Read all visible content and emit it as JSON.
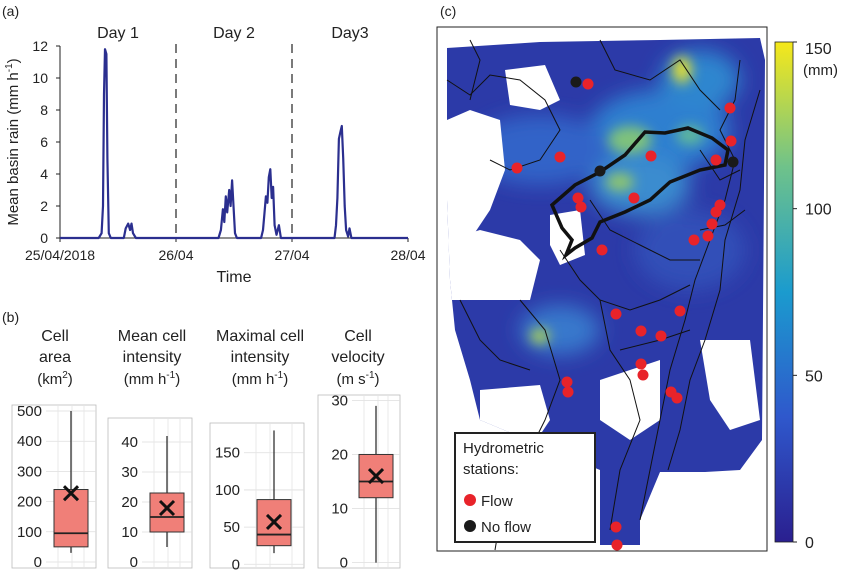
{
  "panels": {
    "a": "(a)",
    "b": "(b)",
    "c": "(c)"
  },
  "chart_data": [
    {
      "id": "a",
      "type": "line",
      "xlabel": "Time",
      "ylabel_main": "Mean basin rain (mm h",
      "ylabel_sup": "-1",
      "ylabel_tail": ")",
      "xlim": [
        0,
        72
      ],
      "ylim": [
        0,
        12
      ],
      "yticks": [
        0,
        2,
        4,
        6,
        8,
        10,
        12
      ],
      "xticks": [
        {
          "v": 0,
          "label": "25/04/2018"
        },
        {
          "v": 24,
          "label": "26/04"
        },
        {
          "v": 48,
          "label": "27/04"
        },
        {
          "v": 72,
          "label": "28/04"
        }
      ],
      "day_dividers": [
        24,
        48
      ],
      "day_labels": [
        {
          "v": 12,
          "label": "Day 1"
        },
        {
          "v": 36,
          "label": "Day 2"
        },
        {
          "v": 60,
          "label": "Day3"
        }
      ],
      "color": "#2b2f8f",
      "series": [
        {
          "values": [
            [
              0,
              0
            ],
            [
              8.0,
              0
            ],
            [
              8.6,
              0.3
            ],
            [
              8.9,
              2
            ],
            [
              9.1,
              9
            ],
            [
              9.3,
              11.8
            ],
            [
              9.6,
              11.5
            ],
            [
              9.8,
              5
            ],
            [
              10.1,
              0.3
            ],
            [
              10.5,
              0
            ],
            [
              13.2,
              0
            ],
            [
              13.6,
              0.6
            ],
            [
              14.1,
              0.9
            ],
            [
              14.5,
              0.5
            ],
            [
              14.8,
              0.9
            ],
            [
              15.1,
              0.3
            ],
            [
              15.7,
              0
            ],
            [
              24,
              0
            ],
            [
              32.8,
              0
            ],
            [
              33.3,
              0.5
            ],
            [
              33.7,
              1.8
            ],
            [
              34.0,
              1.0
            ],
            [
              34.3,
              2.6
            ],
            [
              34.6,
              1.6
            ],
            [
              35.0,
              3.0
            ],
            [
              35.3,
              2.0
            ],
            [
              35.6,
              3.6
            ],
            [
              35.9,
              2.0
            ],
            [
              36.2,
              0.3
            ],
            [
              36.6,
              0
            ],
            [
              41.6,
              0
            ],
            [
              42.0,
              0.5
            ],
            [
              42.3,
              1.5
            ],
            [
              42.6,
              2.6
            ],
            [
              42.9,
              2.2
            ],
            [
              43.2,
              3.8
            ],
            [
              43.5,
              4.3
            ],
            [
              43.8,
              2.5
            ],
            [
              44.1,
              3.2
            ],
            [
              44.4,
              0.8
            ],
            [
              44.8,
              0.2
            ],
            [
              45.3,
              0.8
            ],
            [
              45.7,
              0
            ],
            [
              48,
              0
            ],
            [
              56.8,
              0
            ],
            [
              57.1,
              0.8
            ],
            [
              57.4,
              2.5
            ],
            [
              57.7,
              6.2
            ],
            [
              58.0,
              6.6
            ],
            [
              58.3,
              7.0
            ],
            [
              58.6,
              5.0
            ],
            [
              58.9,
              2.0
            ],
            [
              59.2,
              0.5
            ],
            [
              59.6,
              0.1
            ],
            [
              59.9,
              0.6
            ],
            [
              60.3,
              0
            ],
            [
              72,
              0
            ]
          ]
        }
      ]
    },
    {
      "id": "b1",
      "type": "box",
      "title_lines": [
        "Cell",
        "area"
      ],
      "unit_main": "(km",
      "unit_sup": "2",
      "unit_tail": ")",
      "ylim": [
        -20,
        520
      ],
      "yticks": [
        0,
        100,
        200,
        300,
        400,
        500
      ],
      "whisker_low": 30,
      "q1": 50,
      "median": 95,
      "q3": 240,
      "whisker_high": 500,
      "mean": 228
    },
    {
      "id": "b2",
      "type": "box",
      "title_lines": [
        "Mean cell",
        "intensity"
      ],
      "unit_main": "(mm h",
      "unit_sup": "-1",
      "unit_tail": ")",
      "ylim": [
        -2,
        48
      ],
      "yticks": [
        0,
        10,
        20,
        30,
        40
      ],
      "whisker_low": 5,
      "q1": 10,
      "median": 15,
      "q3": 23,
      "whisker_high": 42,
      "mean": 18
    },
    {
      "id": "b3",
      "type": "box",
      "title_lines": [
        "Maximal cell",
        "intensity"
      ],
      "unit_main": "(mm h",
      "unit_sup": "-1",
      "unit_tail": ")",
      "ylim": [
        -5,
        190
      ],
      "yticks": [
        0,
        50,
        100,
        150
      ],
      "whisker_low": 15,
      "q1": 25,
      "median": 40,
      "q3": 87,
      "whisker_high": 180,
      "mean": 57
    },
    {
      "id": "b4",
      "type": "box",
      "title_lines": [
        "Cell",
        "velocity"
      ],
      "unit_main": "(m s",
      "unit_sup": "-1",
      "unit_tail": ")",
      "ylim": [
        -1,
        31
      ],
      "yticks": [
        0,
        10,
        20,
        30
      ],
      "whisker_low": 0,
      "q1": 12,
      "median": 15,
      "q3": 20,
      "whisker_high": 29,
      "mean": 16
    },
    {
      "id": "c",
      "type": "heatmap",
      "colorbar": {
        "ylim": [
          0,
          150
        ],
        "yticks": [
          0,
          50,
          100,
          150
        ],
        "unit": "(mm)"
      },
      "legend": {
        "title_lines": [
          "Hydrometric",
          "stations:"
        ],
        "items": [
          {
            "label": "Flow",
            "color": "#e8232a"
          },
          {
            "label": "No flow",
            "color": "#1a1a1a"
          }
        ]
      }
    }
  ]
}
